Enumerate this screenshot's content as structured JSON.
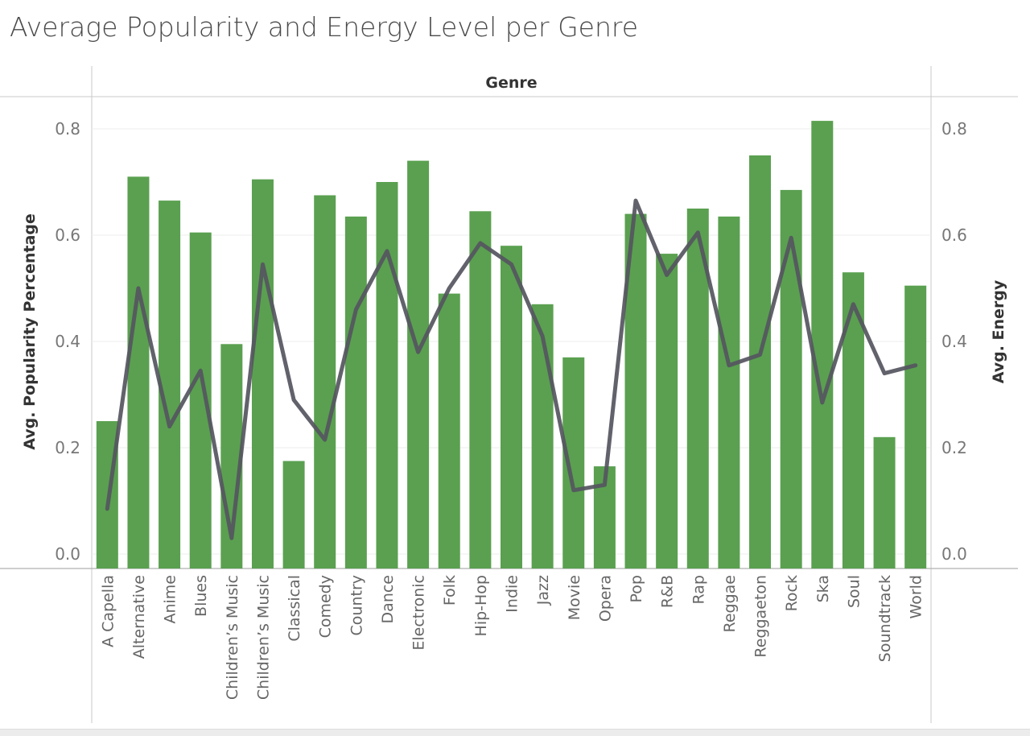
{
  "title": "Average Popularity and Energy Level per Genre",
  "chart_data": {
    "type": "bar",
    "column_header": "Genre",
    "categories": [
      "A Capella",
      "Alternative",
      "Anime",
      "Blues",
      "Children’s Music",
      "Children’s Music",
      "Classical",
      "Comedy",
      "Country",
      "Dance",
      "Electronic",
      "Folk",
      "Hip-Hop",
      "Indie",
      "Jazz",
      "Movie",
      "Opera",
      "Pop",
      "R&B",
      "Rap",
      "Reggae",
      "Reggaeton",
      "Rock",
      "Ska",
      "Soul",
      "Soundtrack",
      "World"
    ],
    "series": [
      {
        "name": "Avg. Popularity Percentage",
        "type": "bar",
        "axis": "left",
        "color": "#5aa050",
        "values": [
          0.25,
          0.71,
          0.665,
          0.605,
          0.395,
          0.705,
          0.175,
          0.675,
          0.635,
          0.7,
          0.74,
          0.49,
          0.645,
          0.58,
          0.47,
          0.37,
          0.165,
          0.64,
          0.565,
          0.65,
          0.635,
          0.75,
          0.685,
          0.815,
          0.53,
          0.22,
          0.505
        ]
      },
      {
        "name": "Avg. Energy",
        "type": "line",
        "axis": "right",
        "color": "#55555f",
        "values": [
          0.085,
          0.5,
          0.24,
          0.345,
          0.03,
          0.545,
          0.29,
          0.215,
          0.46,
          0.57,
          0.38,
          0.5,
          0.585,
          0.545,
          0.41,
          0.12,
          0.13,
          0.665,
          0.525,
          0.605,
          0.355,
          0.375,
          0.595,
          0.285,
          0.47,
          0.34,
          0.355
        ]
      }
    ],
    "ylabel": "Avg. Popularity Percentage",
    "y2label": "Avg. Energy",
    "ylim": [
      0,
      0.85
    ],
    "y2lim": [
      0,
      0.85
    ],
    "yticks": [
      "0.0",
      "0.2",
      "0.4",
      "0.6",
      "0.8"
    ],
    "y2ticks": [
      "0.0",
      "0.2",
      "0.4",
      "0.6",
      "0.8"
    ],
    "grid": true
  }
}
